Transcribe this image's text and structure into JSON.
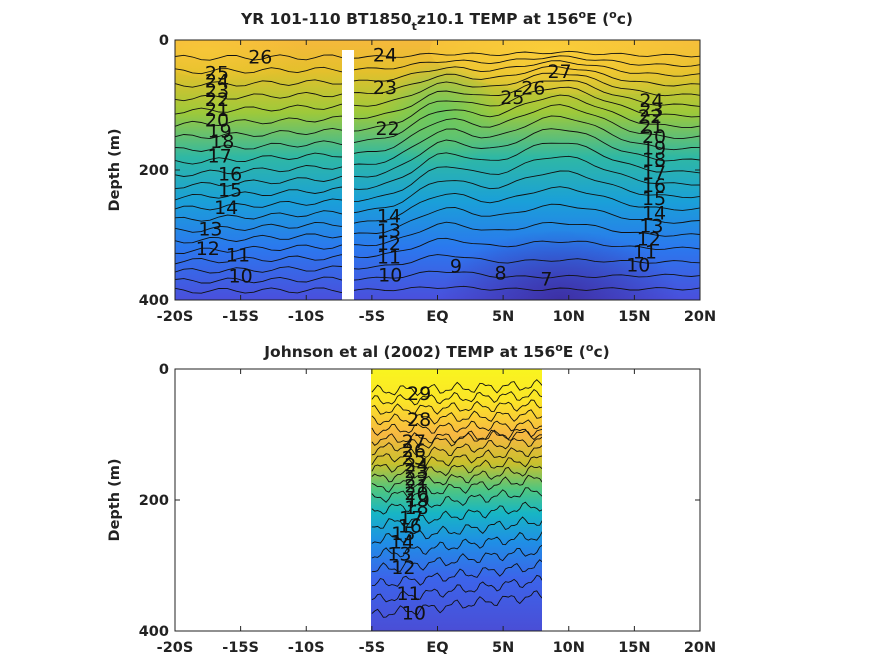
{
  "chart_data": [
    {
      "type": "contour",
      "title": "YR 101-110 BT1850_t z10.1 TEMP at 156°E (°c)",
      "title_parts": {
        "main": "YR 101-110 BT1850",
        "sub": "t",
        "tail": "z10.1 TEMP at 156",
        "sup1": "o",
        "after_sup1": "E (",
        "sup2": "o",
        "end": "c)"
      },
      "ylabel": "Depth (m)",
      "xlabel": "",
      "xlim": [
        -20,
        20
      ],
      "ylim": [
        400,
        0
      ],
      "x_ticks": [
        -20,
        -15,
        -10,
        -5,
        0,
        5,
        10,
        15,
        20
      ],
      "x_tick_labels": [
        "-20S",
        "-15S",
        "-10S",
        "-5S",
        "EQ",
        "5N",
        "10N",
        "15N",
        "20N"
      ],
      "y_ticks": [
        0,
        200,
        400
      ],
      "y_tick_labels": [
        "0",
        "200",
        "400"
      ],
      "data_gap_x": [
        -7.5,
        -6.5
      ],
      "contour_levels": [
        7,
        8,
        9,
        10,
        11,
        12,
        13,
        14,
        15,
        16,
        17,
        18,
        19,
        20,
        21,
        22,
        23,
        24,
        25,
        26,
        27
      ],
      "contour_labels": [
        {
          "text": "26",
          "x": -13.5,
          "y": 25
        },
        {
          "text": "25",
          "x": -16.8,
          "y": 50
        },
        {
          "text": "24",
          "x": -16.8,
          "y": 62
        },
        {
          "text": "23",
          "x": -16.8,
          "y": 77
        },
        {
          "text": "22",
          "x": -16.8,
          "y": 91
        },
        {
          "text": "21",
          "x": -16.8,
          "y": 106
        },
        {
          "text": "20",
          "x": -16.8,
          "y": 122
        },
        {
          "text": "19",
          "x": -16.6,
          "y": 139
        },
        {
          "text": "18",
          "x": -16.4,
          "y": 155
        },
        {
          "text": "17",
          "x": -16.6,
          "y": 178
        },
        {
          "text": "16",
          "x": -15.8,
          "y": 205
        },
        {
          "text": "15",
          "x": -15.8,
          "y": 230
        },
        {
          "text": "14",
          "x": -16.1,
          "y": 257
        },
        {
          "text": "13",
          "x": -17.3,
          "y": 290
        },
        {
          "text": "12",
          "x": -17.5,
          "y": 320
        },
        {
          "text": "11",
          "x": -15.2,
          "y": 330
        },
        {
          "text": "10",
          "x": -15.0,
          "y": 362
        },
        {
          "text": "24",
          "x": -4.0,
          "y": 22
        },
        {
          "text": "23",
          "x": -4.0,
          "y": 72
        },
        {
          "text": "22",
          "x": -3.8,
          "y": 135
        },
        {
          "text": "14",
          "x": -3.7,
          "y": 270
        },
        {
          "text": "13",
          "x": -3.7,
          "y": 292
        },
        {
          "text": "12",
          "x": -3.7,
          "y": 312
        },
        {
          "text": "11",
          "x": -3.7,
          "y": 333
        },
        {
          "text": "10",
          "x": -3.6,
          "y": 361
        },
        {
          "text": "9",
          "x": 1.4,
          "y": 347
        },
        {
          "text": "8",
          "x": 4.8,
          "y": 358
        },
        {
          "text": "7",
          "x": 8.3,
          "y": 367
        },
        {
          "text": "27",
          "x": 9.3,
          "y": 48
        },
        {
          "text": "26",
          "x": 7.3,
          "y": 73
        },
        {
          "text": "25",
          "x": 5.7,
          "y": 88
        },
        {
          "text": "24",
          "x": 16.3,
          "y": 92
        },
        {
          "text": "23",
          "x": 16.3,
          "y": 107
        },
        {
          "text": "22",
          "x": 16.2,
          "y": 117
        },
        {
          "text": "21",
          "x": 16.3,
          "y": 132
        },
        {
          "text": "20",
          "x": 16.5,
          "y": 148
        },
        {
          "text": "19",
          "x": 16.5,
          "y": 165
        },
        {
          "text": "18",
          "x": 16.5,
          "y": 183
        },
        {
          "text": "17",
          "x": 16.5,
          "y": 203
        },
        {
          "text": "16",
          "x": 16.5,
          "y": 223
        },
        {
          "text": "15",
          "x": 16.5,
          "y": 243
        },
        {
          "text": "14",
          "x": 16.5,
          "y": 265
        },
        {
          "text": "13",
          "x": 16.3,
          "y": 285
        },
        {
          "text": "12",
          "x": 16.1,
          "y": 305
        },
        {
          "text": "11",
          "x": 15.8,
          "y": 325
        },
        {
          "text": "10",
          "x": 15.3,
          "y": 345
        }
      ]
    },
    {
      "type": "contour",
      "title": "Johnson et al (2002) TEMP at 156°E (°c)",
      "title_parts": {
        "main": "Johnson et al (2002) TEMP at 156",
        "sup1": "o",
        "after_sup1": "E (",
        "sup2": "o",
        "end": "c)"
      },
      "ylabel": "Depth (m)",
      "xlabel": "",
      "xlim": [
        -20,
        20
      ],
      "ylim": [
        400,
        0
      ],
      "x_ticks": [
        -20,
        -15,
        -10,
        -5,
        0,
        5,
        10,
        15,
        20
      ],
      "x_tick_labels": [
        "-20S",
        "-15S",
        "-10S",
        "-5S",
        "EQ",
        "5N",
        "10N",
        "15N",
        "20N"
      ],
      "y_ticks": [
        0,
        200,
        400
      ],
      "y_tick_labels": [
        "0",
        "200",
        "400"
      ],
      "data_extent_x": [
        -5,
        8
      ],
      "contour_levels": [
        10,
        11,
        12,
        13,
        14,
        15,
        16,
        17,
        18,
        19,
        20,
        21,
        22,
        23,
        24,
        25,
        26,
        27,
        28,
        29
      ],
      "contour_labels": [
        {
          "text": "29",
          "x": -1.4,
          "y": 37
        },
        {
          "text": "28",
          "x": -1.4,
          "y": 76
        },
        {
          "text": "27",
          "x": -1.8,
          "y": 110
        },
        {
          "text": "26",
          "x": -1.8,
          "y": 124
        },
        {
          "text": "25",
          "x": -1.8,
          "y": 135
        },
        {
          "text": "24",
          "x": -1.6,
          "y": 146
        },
        {
          "text": "23",
          "x": -1.6,
          "y": 156
        },
        {
          "text": "22",
          "x": -1.6,
          "y": 167
        },
        {
          "text": "21",
          "x": -1.6,
          "y": 178
        },
        {
          "text": "20",
          "x": -1.6,
          "y": 189
        },
        {
          "text": "19",
          "x": -1.5,
          "y": 199
        },
        {
          "text": "18",
          "x": -1.6,
          "y": 211
        },
        {
          "text": "17",
          "x": -2.0,
          "y": 227
        },
        {
          "text": "16",
          "x": -2.1,
          "y": 239
        },
        {
          "text": "15",
          "x": -2.6,
          "y": 250
        },
        {
          "text": "14",
          "x": -2.7,
          "y": 263
        },
        {
          "text": "13",
          "x": -2.9,
          "y": 282
        },
        {
          "text": "12",
          "x": -2.6,
          "y": 302
        },
        {
          "text": "11",
          "x": -2.2,
          "y": 342
        },
        {
          "text": "10",
          "x": -1.8,
          "y": 372
        }
      ]
    }
  ]
}
